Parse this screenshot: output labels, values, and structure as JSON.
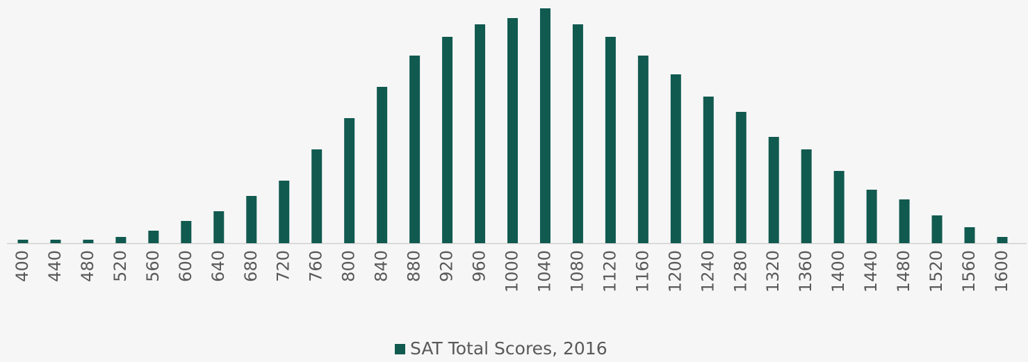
{
  "chart_data": {
    "type": "bar",
    "categories": [
      "400",
      "440",
      "480",
      "520",
      "560",
      "600",
      "640",
      "680",
      "720",
      "760",
      "800",
      "840",
      "880",
      "920",
      "960",
      "1000",
      "1040",
      "1080",
      "1120",
      "1160",
      "1200",
      "1240",
      "1280",
      "1320",
      "1360",
      "1400",
      "1440",
      "1480",
      "1520",
      "1560",
      "1600"
    ],
    "series": [
      {
        "name": "SAT Total Scores, 2016",
        "color": "#115a50",
        "values": [
          5,
          5,
          5,
          9,
          18,
          32,
          46,
          68,
          90,
          135,
          180,
          225,
          270,
          297,
          315,
          324,
          338,
          315,
          297,
          270,
          243,
          211,
          189,
          153,
          135,
          104,
          77,
          63,
          40,
          23,
          9
        ]
      }
    ],
    "legend": "bottom"
  }
}
